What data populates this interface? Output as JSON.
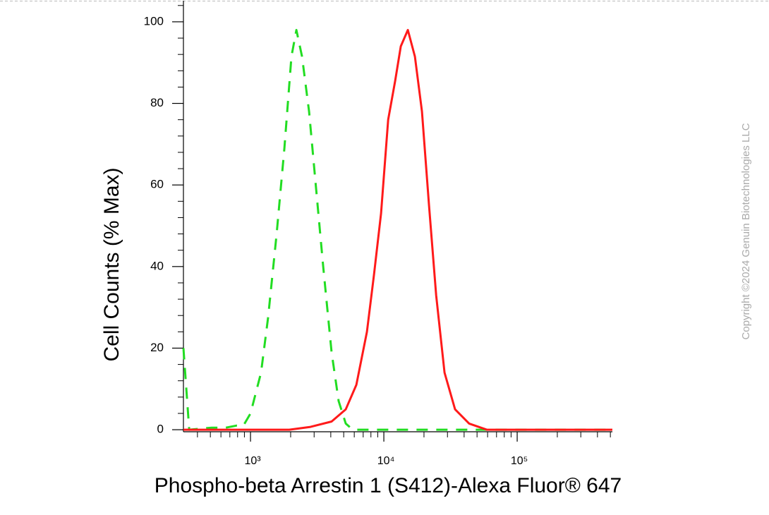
{
  "chart_data": {
    "type": "line",
    "x_label": "Phospho-beta Arrestin 1 (S412)-Alexa Fluor® 647",
    "y_label": "Cell Counts (% Max)",
    "xscale": "log",
    "xlim": [
      314,
      517600
    ],
    "ylim": [
      -0.5,
      105
    ],
    "xticks": [
      {
        "value": 1000,
        "label": "10³"
      },
      {
        "value": 10000,
        "label": "10⁴"
      },
      {
        "value": 100000,
        "label": "10⁵"
      }
    ],
    "xminor": [
      400,
      500,
      600,
      700,
      800,
      900,
      2000,
      3000,
      4000,
      5000,
      6000,
      7000,
      8000,
      9000,
      20000,
      30000,
      40000,
      50000,
      60000,
      70000,
      80000,
      90000,
      200000,
      300000,
      400000,
      500000
    ],
    "yticks": [
      0,
      20,
      40,
      60,
      80,
      100
    ],
    "yminor": [
      4,
      8,
      12,
      16,
      24,
      28,
      32,
      36,
      44,
      48,
      52,
      56,
      64,
      68,
      72,
      76,
      84,
      88,
      92,
      96,
      104
    ],
    "series": [
      {
        "color": "#22dd22",
        "dashed": true,
        "x": [
          314,
          347,
          512,
          653,
          783,
          885,
          1000,
          1200,
          1355,
          1570,
          1795,
          2028,
          2208,
          2433,
          2749,
          3105,
          3508,
          4058,
          4584,
          5180,
          5848,
          517600
        ],
        "values": [
          20,
          0,
          0.5,
          0.5,
          1,
          1,
          4,
          14,
          27.5,
          48,
          69,
          91.5,
          98,
          91.5,
          78,
          59,
          40,
          19,
          7,
          1.5,
          0,
          0
        ]
      },
      {
        "color": "#ff1a1a",
        "dashed": false,
        "x": [
          314,
          1953,
          2818,
          4058,
          5180,
          6223,
          7470,
          8440,
          9531,
          10770,
          12160,
          13400,
          15140,
          17100,
          19320,
          21830,
          24660,
          28530,
          34200,
          43650,
          59160,
          517600
        ],
        "values": [
          0,
          0,
          0.7,
          2,
          5,
          11,
          24,
          38,
          53,
          76,
          85.5,
          94,
          98,
          91.5,
          78,
          55,
          33,
          14,
          5,
          1.5,
          0,
          0
        ]
      }
    ]
  },
  "watermark": "Copyright ©2024 Genuin Biotechnologies LLC"
}
